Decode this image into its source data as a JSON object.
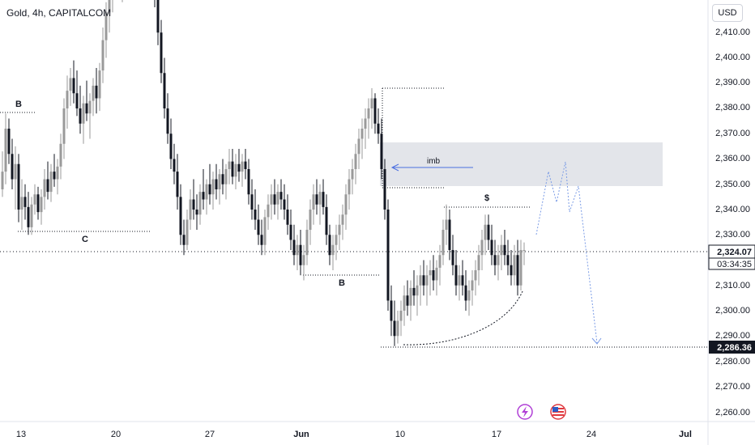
{
  "header": {
    "symbol": "Gold, 4h, CAPITALCOM"
  },
  "price_axis": {
    "currency": "USD",
    "ticks": [
      "2,410.00",
      "2,400.00",
      "2,390.00",
      "2,380.00",
      "2,370.00",
      "2,360.00",
      "2,350.00",
      "2,340.00",
      "2,330.00",
      "2,320.00",
      "2,310.00",
      "2,300.00",
      "2,290.00",
      "2,280.00",
      "2,270.00",
      "2,260.00"
    ],
    "last_price": "2,324.07",
    "countdown": "03:34:35",
    "marked_price": "2,286.36"
  },
  "time_axis": {
    "ticks": [
      "13",
      "20",
      "27",
      "Jun",
      "10",
      "17",
      "24",
      "Jul"
    ]
  },
  "annotations": {
    "b_left": "B",
    "c_label": "C",
    "b_mid": "B",
    "imb_label": "imb",
    "dollar_label": "$"
  },
  "colors": {
    "up_candle": "#9a9a9a",
    "down_candle": "#131722",
    "projection": "#7b9ce6",
    "imbalance_zone": "#e3e5ea",
    "last_price_badge": "#ffffff",
    "marked_price_badge": "#131722"
  },
  "icons": [
    "lightning-icon",
    "us-flag-icon"
  ]
}
